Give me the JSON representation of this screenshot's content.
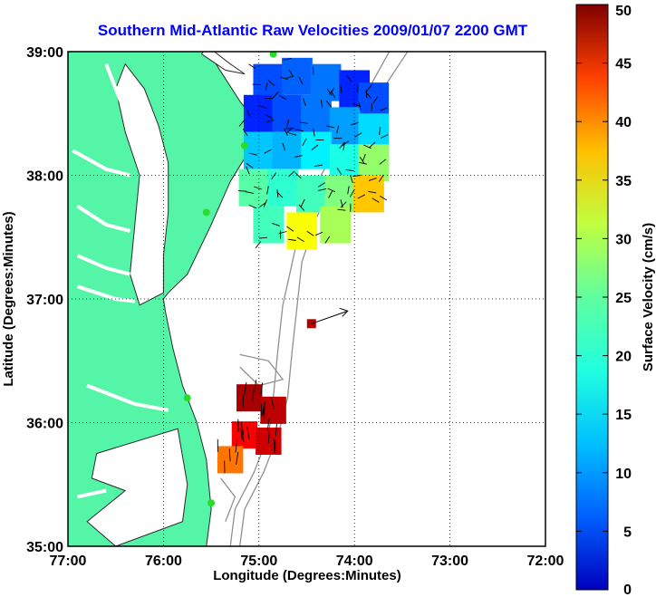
{
  "chart_data": {
    "type": "heatmap",
    "title": "Southern Mid-Atlantic Raw Velocities 2009/01/07 2200 GMT",
    "xlabel": "Longitude (Degrees:Minutes)",
    "ylabel": "Latitude (Degrees:Minutes)",
    "xlim": [
      -77,
      -72
    ],
    "ylim": [
      35,
      39
    ],
    "x_ticks": [
      "77:00",
      "76:00",
      "75:00",
      "74:00",
      "73:00",
      "72:00"
    ],
    "y_ticks": [
      "35:00",
      "36:00",
      "37:00",
      "38:00",
      "39:00"
    ],
    "grid": "dotted",
    "colorbar": {
      "label": "Surface Velocity (cm/s)",
      "range": [
        0,
        50
      ],
      "ticks": [
        "0",
        "5",
        "10",
        "15",
        "20",
        "25",
        "30",
        "35",
        "40",
        "45",
        "50"
      ]
    },
    "regions": [
      {
        "name": "northern",
        "cells": [
          {
            "lon": -74.9,
            "lat": 38.75,
            "v": 10
          },
          {
            "lon": -74.6,
            "lat": 38.8,
            "v": 11
          },
          {
            "lon": -74.3,
            "lat": 38.75,
            "v": 12
          },
          {
            "lon": -74.0,
            "lat": 38.7,
            "v": 8
          },
          {
            "lon": -73.8,
            "lat": 38.6,
            "v": 10
          },
          {
            "lon": -75.0,
            "lat": 38.5,
            "v": 8
          },
          {
            "lon": -74.7,
            "lat": 38.5,
            "v": 10
          },
          {
            "lon": -74.4,
            "lat": 38.5,
            "v": 12
          },
          {
            "lon": -74.1,
            "lat": 38.4,
            "v": 14
          },
          {
            "lon": -73.8,
            "lat": 38.35,
            "v": 17
          },
          {
            "lon": -75.0,
            "lat": 38.2,
            "v": 16
          },
          {
            "lon": -74.7,
            "lat": 38.2,
            "v": 15
          },
          {
            "lon": -74.4,
            "lat": 38.2,
            "v": 18
          },
          {
            "lon": -74.1,
            "lat": 38.1,
            "v": 20
          },
          {
            "lon": -73.8,
            "lat": 38.1,
            "v": 26
          },
          {
            "lon": -75.05,
            "lat": 37.9,
            "v": 23
          },
          {
            "lon": -74.75,
            "lat": 37.9,
            "v": 21
          },
          {
            "lon": -74.45,
            "lat": 37.85,
            "v": 22
          },
          {
            "lon": -74.15,
            "lat": 37.85,
            "v": 25
          },
          {
            "lon": -73.85,
            "lat": 37.85,
            "v": 34
          },
          {
            "lon": -74.9,
            "lat": 37.6,
            "v": 22
          },
          {
            "lon": -74.55,
            "lat": 37.55,
            "v": 31
          },
          {
            "lon": -74.2,
            "lat": 37.6,
            "v": 27
          }
        ]
      },
      {
        "name": "southern",
        "cells": [
          {
            "lon": -75.1,
            "lat": 36.2,
            "v": 48
          },
          {
            "lon": -74.85,
            "lat": 36.1,
            "v": 47
          },
          {
            "lon": -75.15,
            "lat": 35.9,
            "v": 44
          },
          {
            "lon": -74.9,
            "lat": 35.85,
            "v": 46
          },
          {
            "lon": -75.3,
            "lat": 35.7,
            "v": 38
          }
        ]
      }
    ],
    "buoy_vector": {
      "lon": -74.45,
      "lat": 36.8,
      "v": 45,
      "u_dir_deg": 20
    },
    "stations": [
      {
        "lon": -74.85,
        "lat": 38.98
      },
      {
        "lon": -75.15,
        "lat": 38.24
      },
      {
        "lon": -75.55,
        "lat": 37.7
      },
      {
        "lon": -75.75,
        "lat": 36.2
      },
      {
        "lon": -75.5,
        "lat": 35.35
      }
    ]
  },
  "colors": {
    "land": "#55f5a8",
    "coast_line": "#2a2a2a",
    "bathymetry": "#909090",
    "title": "#0000ff",
    "station": "#2adc2a",
    "buoy": "#b40000"
  }
}
